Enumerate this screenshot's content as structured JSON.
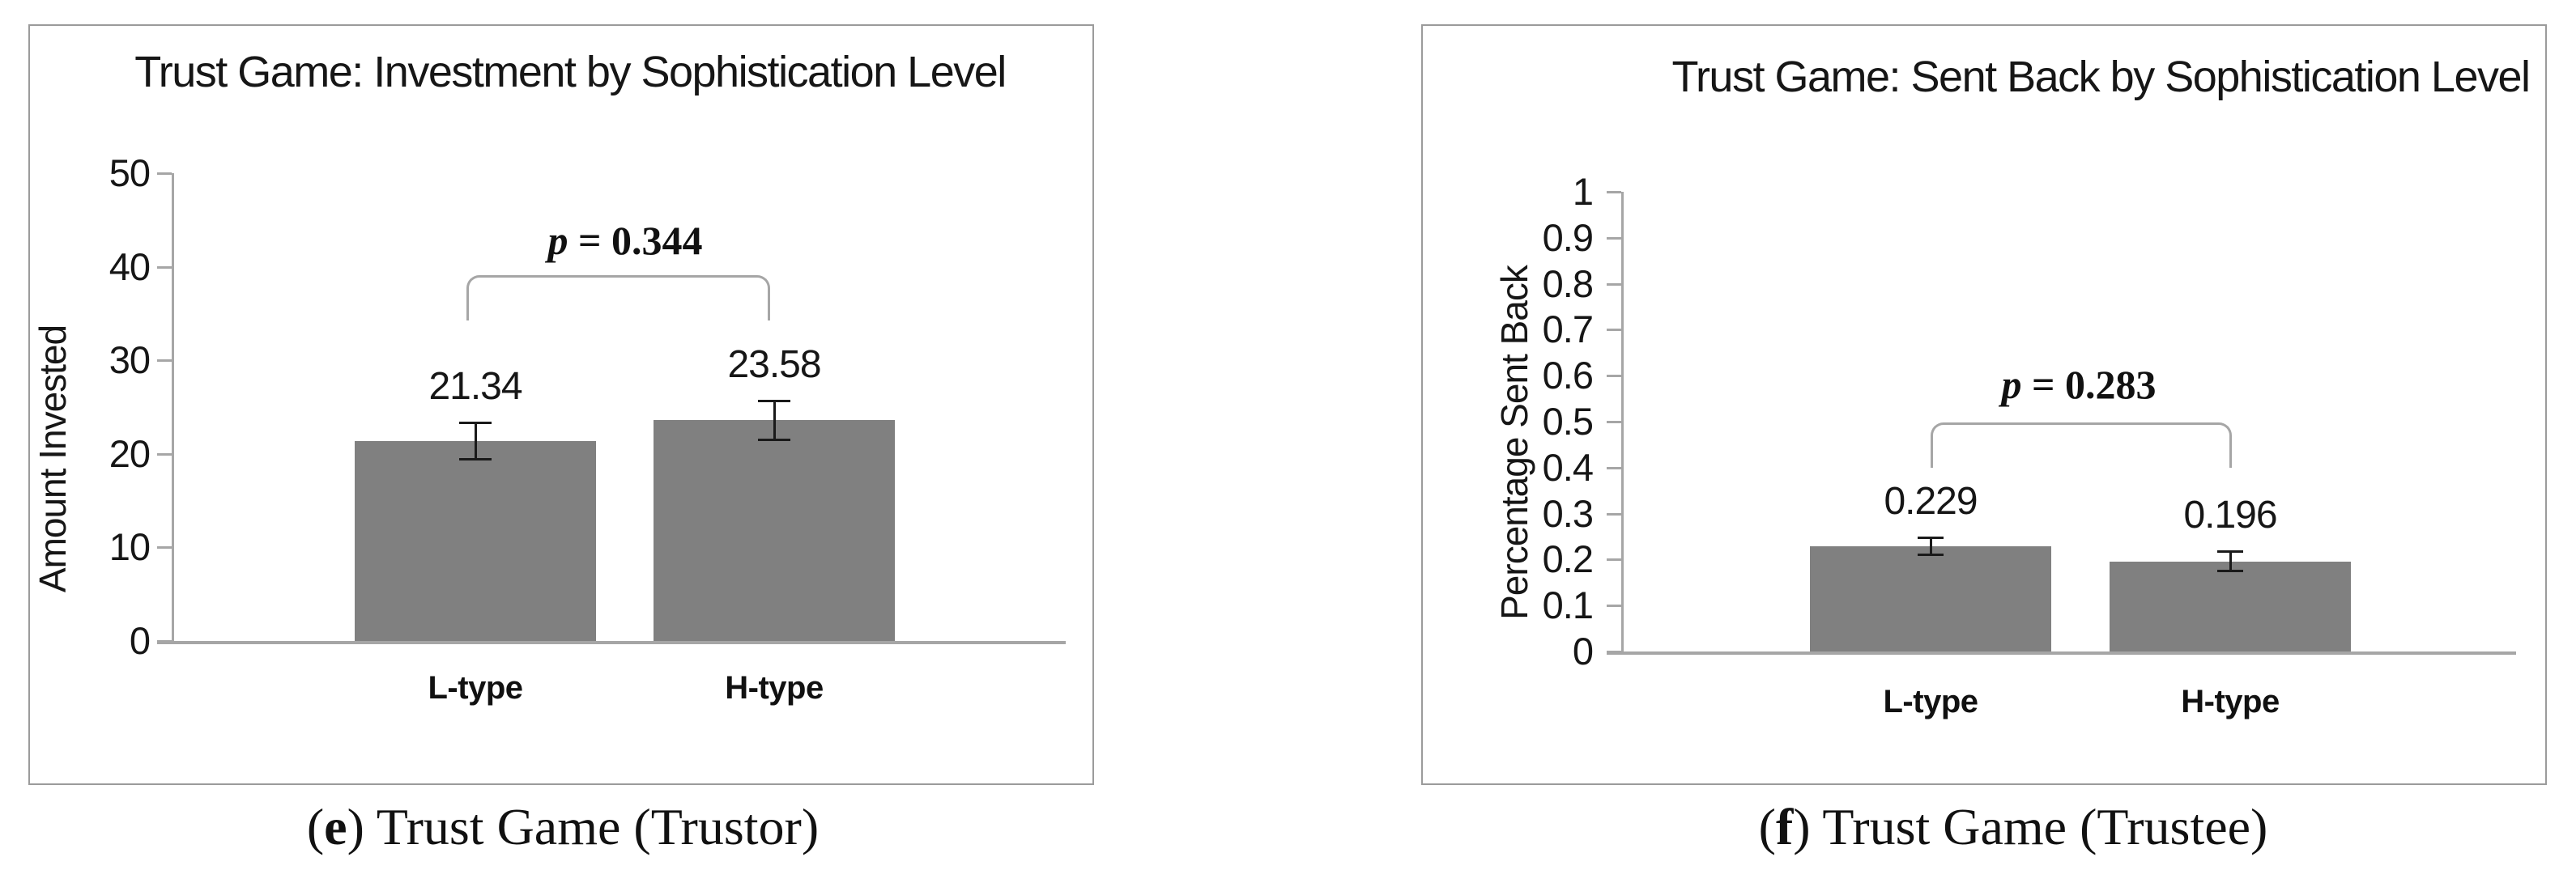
{
  "colors": {
    "bar": "#808080",
    "axis": "#a6a6a6",
    "panel_border": "#9b9b9b",
    "text": "#111111",
    "error_bar": "#1a1a1a"
  },
  "chart_data": [
    {
      "type": "bar",
      "panel_letter": "e",
      "title": "Trust Game: Investment by Sophistication Level",
      "ylabel": "Amount Invested",
      "xlabel": "",
      "categories": [
        "L-type",
        "H-type"
      ],
      "values": [
        21.34,
        23.58
      ],
      "data_labels": [
        "21.34",
        "23.58"
      ],
      "error_bars": [
        2.0,
        2.1
      ],
      "ylim": [
        0,
        50
      ],
      "ytick_step": 10,
      "ytick_labels": [
        "0",
        "10",
        "20",
        "30",
        "40",
        "50"
      ],
      "grid": false,
      "legend": "none",
      "bar_color": "#808080",
      "annotation": {
        "symbol": "p",
        "text": " = 0.344",
        "spans": [
          "L-type",
          "H-type"
        ],
        "bracket_level": 40
      },
      "caption": {
        "open": "(",
        "marker": "e",
        "rest": ") Trust Game (Trustor)"
      }
    },
    {
      "type": "bar",
      "panel_letter": "f",
      "title": "Trust Game: Sent Back by Sophistication Level",
      "ylabel": "Percentage Sent Back",
      "xlabel": "",
      "categories": [
        "L-type",
        "H-type"
      ],
      "values": [
        0.229,
        0.196
      ],
      "data_labels": [
        "0.229",
        "0.196"
      ],
      "error_bars": [
        0.019,
        0.022
      ],
      "ylim": [
        0,
        1
      ],
      "ytick_step": 0.1,
      "ytick_labels": [
        "0",
        "0.1",
        "0.2",
        "0.3",
        "0.4",
        "0.5",
        "0.6",
        "0.7",
        "0.8",
        "0.9",
        "1"
      ],
      "grid": false,
      "legend": "none",
      "bar_color": "#808080",
      "annotation": {
        "symbol": "p",
        "text": " = 0.283",
        "spans": [
          "L-type",
          "H-type"
        ],
        "bracket_level": 0.55
      },
      "caption": {
        "open": "(",
        "marker": "f",
        "rest": ") Trust Game (Trustee)"
      }
    }
  ]
}
